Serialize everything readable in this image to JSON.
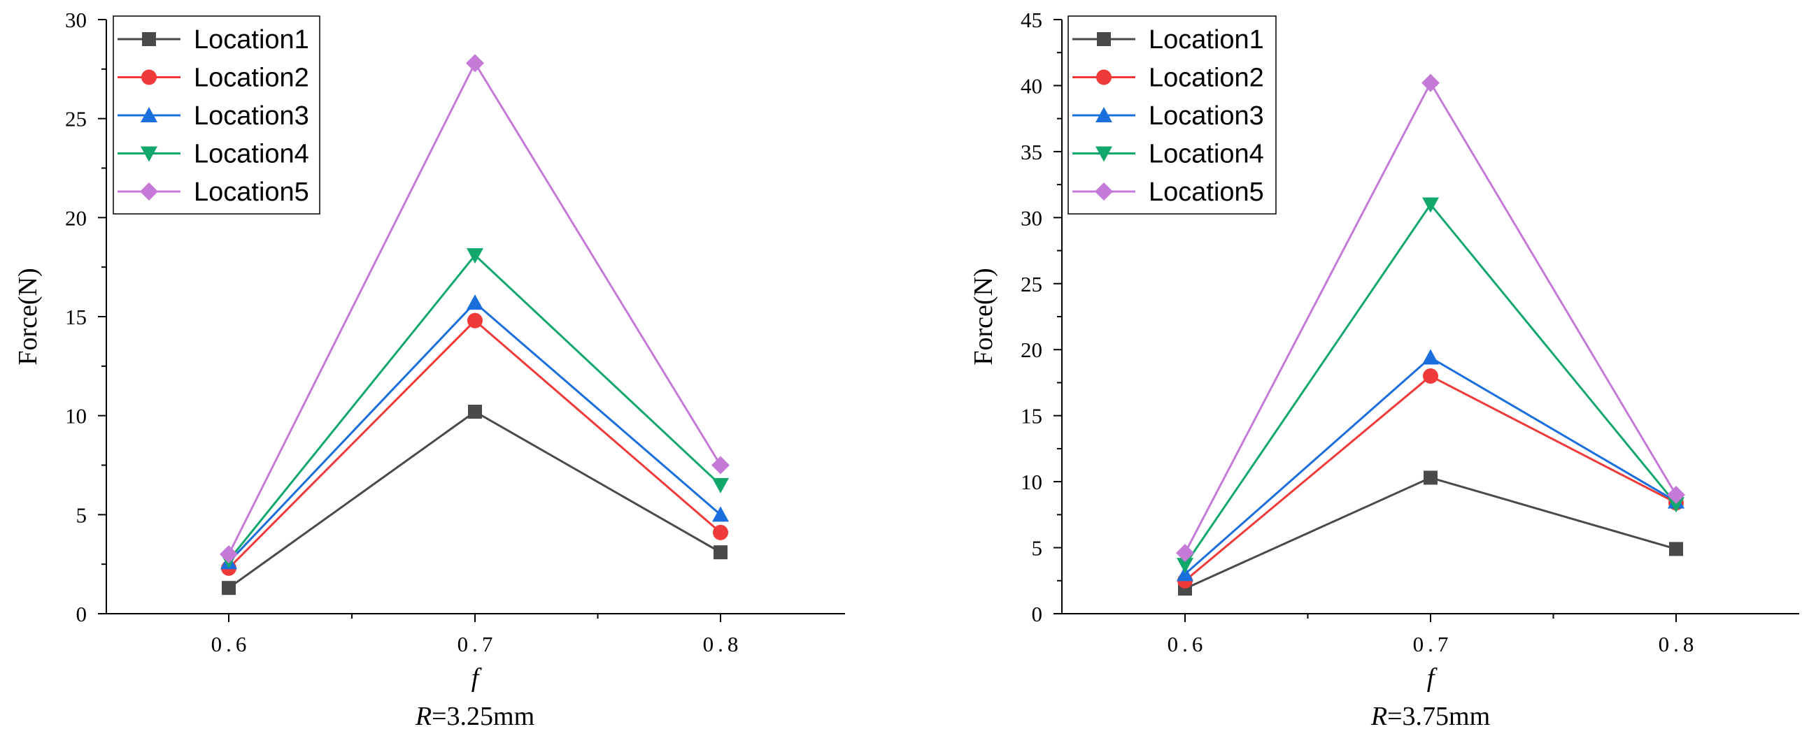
{
  "colors": {
    "Location1": "#4a4a4a",
    "Location2": "#f03a3a",
    "Location3": "#1a6fdc",
    "Location4": "#12a86b",
    "Location5": "#c57ad8"
  },
  "markers": {
    "Location1": "square",
    "Location2": "circle",
    "Location3": "triangle-up",
    "Location4": "triangle-down",
    "Location5": "diamond"
  },
  "chart_data": [
    {
      "type": "line",
      "categories": [
        "0.6",
        "0.7",
        "0.8"
      ],
      "ylabel": "Force(N)",
      "xlabel": "f",
      "caption_var": "R",
      "caption_rest": "=3.25mm",
      "ylim": [
        0,
        30
      ],
      "yticks": [
        0,
        5,
        10,
        15,
        20,
        25,
        30
      ],
      "grid": false,
      "legend": "top-left",
      "series": [
        {
          "name": "Location1",
          "values": [
            1.3,
            10.2,
            3.1
          ]
        },
        {
          "name": "Location2",
          "values": [
            2.3,
            14.8,
            4.1
          ]
        },
        {
          "name": "Location3",
          "values": [
            2.6,
            15.7,
            5.0
          ]
        },
        {
          "name": "Location4",
          "values": [
            2.7,
            18.1,
            6.5
          ]
        },
        {
          "name": "Location5",
          "values": [
            3.0,
            27.8,
            7.5
          ]
        }
      ]
    },
    {
      "type": "line",
      "categories": [
        "0.6",
        "0.7",
        "0.8"
      ],
      "ylabel": "Force(N)",
      "xlabel": "f",
      "caption_var": "R",
      "caption_rest": "=3.75mm",
      "ylim": [
        0,
        45
      ],
      "yticks": [
        0,
        5,
        10,
        15,
        20,
        25,
        30,
        35,
        40,
        45
      ],
      "grid": false,
      "legend": "top-left",
      "series": [
        {
          "name": "Location1",
          "values": [
            1.9,
            10.3,
            4.9
          ]
        },
        {
          "name": "Location2",
          "values": [
            2.5,
            18.0,
            8.4
          ]
        },
        {
          "name": "Location3",
          "values": [
            3.0,
            19.4,
            8.5
          ]
        },
        {
          "name": "Location4",
          "values": [
            3.7,
            31.0,
            8.3
          ]
        },
        {
          "name": "Location5",
          "values": [
            4.6,
            40.2,
            9.0
          ]
        }
      ]
    }
  ]
}
